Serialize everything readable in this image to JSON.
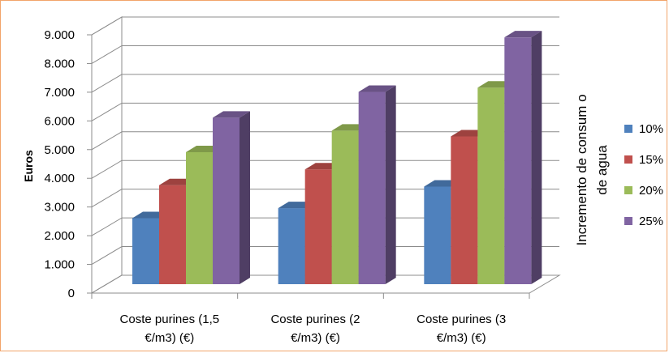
{
  "chart_data": {
    "type": "bar",
    "categories": [
      [
        "Coste purines (1,5",
        "€/m3) (€)"
      ],
      [
        "Coste purines (2",
        "€/m3) (€)"
      ],
      [
        "Coste purines (3",
        "€/m3) (€)"
      ]
    ],
    "series": [
      {
        "name": "10%",
        "color": "#4f81bd",
        "values": [
          2300,
          2650,
          3400
        ]
      },
      {
        "name": "15%",
        "color": "#c0504d",
        "values": [
          3450,
          4000,
          5150
        ]
      },
      {
        "name": "20%",
        "color": "#9bbb59",
        "values": [
          4600,
          5350,
          6850
        ]
      },
      {
        "name": "25%",
        "color": "#8064a2",
        "values": [
          5800,
          6700,
          8600
        ]
      }
    ],
    "yticks": [
      "0",
      "1.000",
      "2.000",
      "3.000",
      "4.000",
      "5.000",
      "6.000",
      "7.000",
      "8.000",
      "9.000"
    ],
    "ylim": [
      0,
      9000
    ],
    "ylabel": "Euros",
    "legend_title": [
      "Incremento de  consum o",
      "de agua"
    ],
    "legend_position": "right",
    "grid": true,
    "style": "3d-clustered-column"
  }
}
